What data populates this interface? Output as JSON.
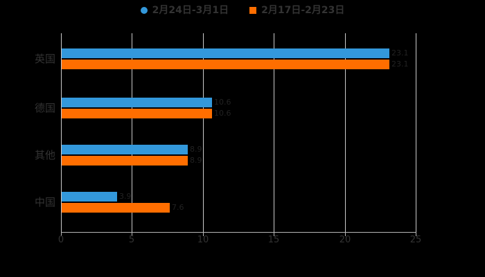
{
  "legend": {
    "items": [
      {
        "label": "2月24日-3月1日",
        "marker": "circle",
        "color": "#3398db"
      },
      {
        "label": "2月17日-2月23日",
        "marker": "square",
        "color": "#ff6e00"
      }
    ]
  },
  "chart_data": {
    "type": "bar",
    "orientation": "horizontal",
    "title": "",
    "xlabel": "",
    "ylabel": "",
    "categories": [
      "英国",
      "德国",
      "其他",
      "中国"
    ],
    "series": [
      {
        "name": "2月24日-3月1日",
        "color": "#3398db",
        "values": [
          23.1,
          10.6,
          8.9,
          3.9
        ]
      },
      {
        "name": "2月17日-2月23日",
        "color": "#ff6e00",
        "values": [
          23.1,
          10.6,
          8.9,
          7.6
        ]
      }
    ],
    "xlim": [
      0,
      25
    ],
    "x_ticks": [
      "0",
      "5",
      "10",
      "15",
      "20",
      "25"
    ],
    "grid": true,
    "legend_position": "top",
    "colors": {
      "background": "#000000",
      "text": "#333333",
      "gridline": "#cccccc",
      "axis_line": "#b8b8b8",
      "value_label": "#222222"
    }
  }
}
